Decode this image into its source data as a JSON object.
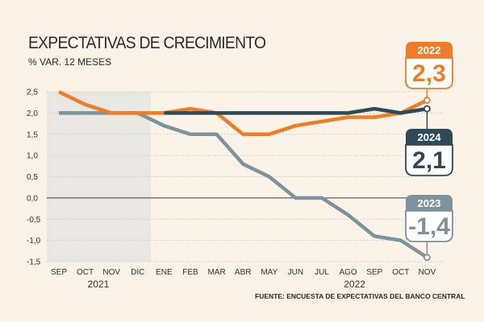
{
  "chart_data": {
    "type": "line",
    "title": "EXPECTATIVAS DE CRECIMIENTO",
    "subtitle": "% VAR. 12 MESES",
    "source": "FUENTE: ENCUESTA DE EXPECTATIVAS DEL BANCO CENTRAL",
    "categories": [
      "SEP",
      "OCT",
      "NOV",
      "DIC",
      "ENE",
      "FEB",
      "MAR",
      "ABR",
      "MAY",
      "JUN",
      "JUL",
      "AGO",
      "SEP",
      "OCT",
      "NOV"
    ],
    "year_labels": [
      "2021",
      "2022"
    ],
    "y_ticks": [
      "2,5",
      "2,0",
      "1,5",
      "1,0",
      "0,5",
      "0,0",
      "-0,5",
      "-1,0",
      "-1,5"
    ],
    "ylim": [
      -1.5,
      2.5
    ],
    "grid": true,
    "shaded_period": "SEP 2021 - DIC 2021",
    "series": [
      {
        "name": "2022",
        "color": "#f07c26",
        "values": [
          2.5,
          2.2,
          2.0,
          2.0,
          2.0,
          2.1,
          2.0,
          1.5,
          1.5,
          1.7,
          1.8,
          1.9,
          1.9,
          2.0,
          2.3
        ],
        "badge_year": "2022",
        "badge_value": "2,3"
      },
      {
        "name": "2023",
        "color": "#7d939c",
        "values": [
          2.0,
          2.0,
          2.0,
          2.0,
          1.7,
          1.5,
          1.5,
          0.8,
          0.5,
          0.0,
          0.0,
          -0.4,
          -0.9,
          -1.0,
          -1.4
        ],
        "badge_year": "2023",
        "badge_value": "-1,4"
      },
      {
        "name": "2024",
        "color": "#2e4a57",
        "values": [
          null,
          null,
          null,
          null,
          2.0,
          2.0,
          2.0,
          2.0,
          2.0,
          2.0,
          2.0,
          2.0,
          2.1,
          2.0,
          2.1
        ],
        "badge_year": "2024",
        "badge_value": "2,1"
      }
    ]
  }
}
